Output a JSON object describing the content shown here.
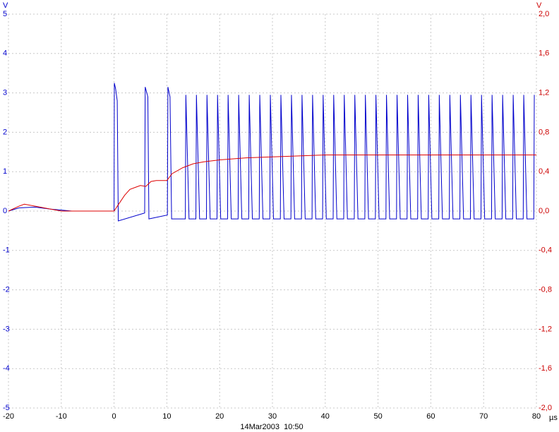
{
  "chart_data": {
    "type": "line",
    "xlim": [
      -20,
      80
    ],
    "xticks": [
      -20,
      -10,
      0,
      10,
      20,
      30,
      40,
      50,
      60,
      70,
      80
    ],
    "ylim": [
      -5,
      5
    ],
    "yticks": [
      -5,
      -4,
      -3,
      -2,
      -1,
      0,
      1,
      2,
      3,
      4,
      5
    ],
    "y2lim": [
      -2,
      2
    ],
    "y2ticks": [
      {
        "value": -2,
        "label": "-2,0"
      },
      {
        "value": -1.6,
        "label": "-1,6"
      },
      {
        "value": -1.2,
        "label": "-1,2"
      },
      {
        "value": -0.8,
        "label": "-0,8"
      },
      {
        "value": -0.4,
        "label": "-0,4"
      },
      {
        "value": 0,
        "label": "0,0"
      },
      {
        "value": 0.4,
        "label": "0,4"
      },
      {
        "value": 0.8,
        "label": "0,8"
      },
      {
        "value": 1.2,
        "label": "1,2"
      },
      {
        "value": 1.6,
        "label": "1,6"
      },
      {
        "value": 2,
        "label": "2,0"
      }
    ],
    "grid": true,
    "y_unit": "V",
    "y2_unit": "V",
    "x_unit": "µs",
    "timestamp": "14Mar2003  10:50",
    "series": [
      {
        "color": "#0000cc",
        "x": [
          -20,
          -18,
          -15,
          -12,
          -8,
          0,
          0.05,
          0.3,
          0.6,
          0.8,
          5.8,
          5.9,
          6.4,
          6.6,
          10.1,
          10.2,
          10.6,
          10.9,
          13.5,
          13.6,
          14.2,
          15.5,
          15.6,
          16.2,
          17.5,
          17.6,
          18.2,
          19.5,
          19.6,
          20.2,
          21.5,
          21.6,
          22.2,
          23.5,
          23.6,
          24.2,
          25.5,
          25.6,
          26.2,
          27.5,
          27.6,
          28.2,
          29.5,
          29.6,
          30.2,
          31.5,
          31.6,
          32.2,
          33.5,
          33.6,
          34.2,
          35.5,
          35.6,
          36.2,
          37.5,
          37.6,
          38.2,
          39.5,
          39.6,
          40.2,
          41.5,
          41.6,
          42.2,
          43.5,
          43.6,
          44.2,
          45.5,
          45.6,
          46.2,
          47.5,
          47.6,
          48.2,
          49.5,
          49.6,
          50.2,
          51.5,
          51.6,
          52.2,
          53.5,
          53.6,
          54.2,
          55.5,
          55.6,
          56.2,
          57.5,
          57.6,
          58.2,
          59.5,
          59.6,
          60.2,
          61.5,
          61.6,
          62.2,
          63.5,
          63.6,
          64.2,
          65.5,
          65.6,
          66.2,
          67.5,
          67.6,
          68.2,
          69.5,
          69.6,
          70.2,
          71.5,
          71.6,
          72.2,
          73.5,
          73.6,
          74.2,
          75.5,
          75.6,
          76.2,
          77.5,
          77.6,
          78.2,
          79.5,
          79.6
        ],
        "values": [
          0,
          0.08,
          0.1,
          0.05,
          0,
          0,
          3.25,
          3.1,
          2.8,
          -0.25,
          -0.05,
          3.15,
          2.9,
          -0.2,
          -0.1,
          3.15,
          2.9,
          -0.2,
          -0.2,
          2.95,
          -0.2,
          -0.2,
          2.95,
          -0.2,
          -0.2,
          2.95,
          -0.2,
          -0.2,
          2.95,
          -0.2,
          -0.2,
          2.95,
          -0.2,
          -0.2,
          2.95,
          -0.2,
          -0.2,
          2.95,
          -0.2,
          -0.2,
          2.95,
          -0.2,
          -0.2,
          2.95,
          -0.2,
          -0.2,
          2.95,
          -0.2,
          -0.2,
          2.95,
          -0.2,
          -0.2,
          2.95,
          -0.2,
          -0.2,
          2.95,
          -0.2,
          -0.2,
          2.95,
          -0.2,
          -0.2,
          2.95,
          -0.2,
          -0.2,
          2.95,
          -0.2,
          -0.2,
          2.95,
          -0.2,
          -0.2,
          2.95,
          -0.2,
          -0.2,
          2.95,
          -0.2,
          -0.2,
          2.95,
          -0.2,
          -0.2,
          2.95,
          -0.2,
          -0.2,
          2.95,
          -0.2,
          -0.2,
          2.95,
          -0.2,
          -0.2,
          2.95,
          -0.2,
          -0.2,
          2.95,
          -0.2,
          -0.2,
          2.95,
          -0.2,
          -0.2,
          2.95,
          -0.2,
          -0.2,
          2.95,
          -0.2,
          -0.2,
          2.95,
          -0.2,
          -0.2,
          2.95,
          -0.2,
          -0.2,
          2.95,
          -0.2,
          -0.2,
          2.95,
          -0.2,
          -0.2,
          2.95,
          -0.2,
          -0.2,
          2.95
        ]
      },
      {
        "color": "#dd0000",
        "axis": "y2",
        "x": [
          -20,
          -18,
          -17,
          -15,
          -12,
          -10,
          0,
          1,
          2,
          3,
          4,
          5,
          6,
          7,
          8,
          10,
          11,
          12,
          13,
          15,
          17,
          20,
          25,
          30,
          35,
          40,
          50,
          60,
          70,
          80
        ],
        "values": [
          0,
          0.05,
          0.07,
          0.05,
          0.02,
          0,
          0,
          0.08,
          0.16,
          0.22,
          0.24,
          0.26,
          0.25,
          0.3,
          0.31,
          0.31,
          0.38,
          0.41,
          0.44,
          0.48,
          0.5,
          0.52,
          0.54,
          0.55,
          0.56,
          0.57,
          0.57,
          0.57,
          0.57,
          0.57
        ]
      }
    ]
  }
}
